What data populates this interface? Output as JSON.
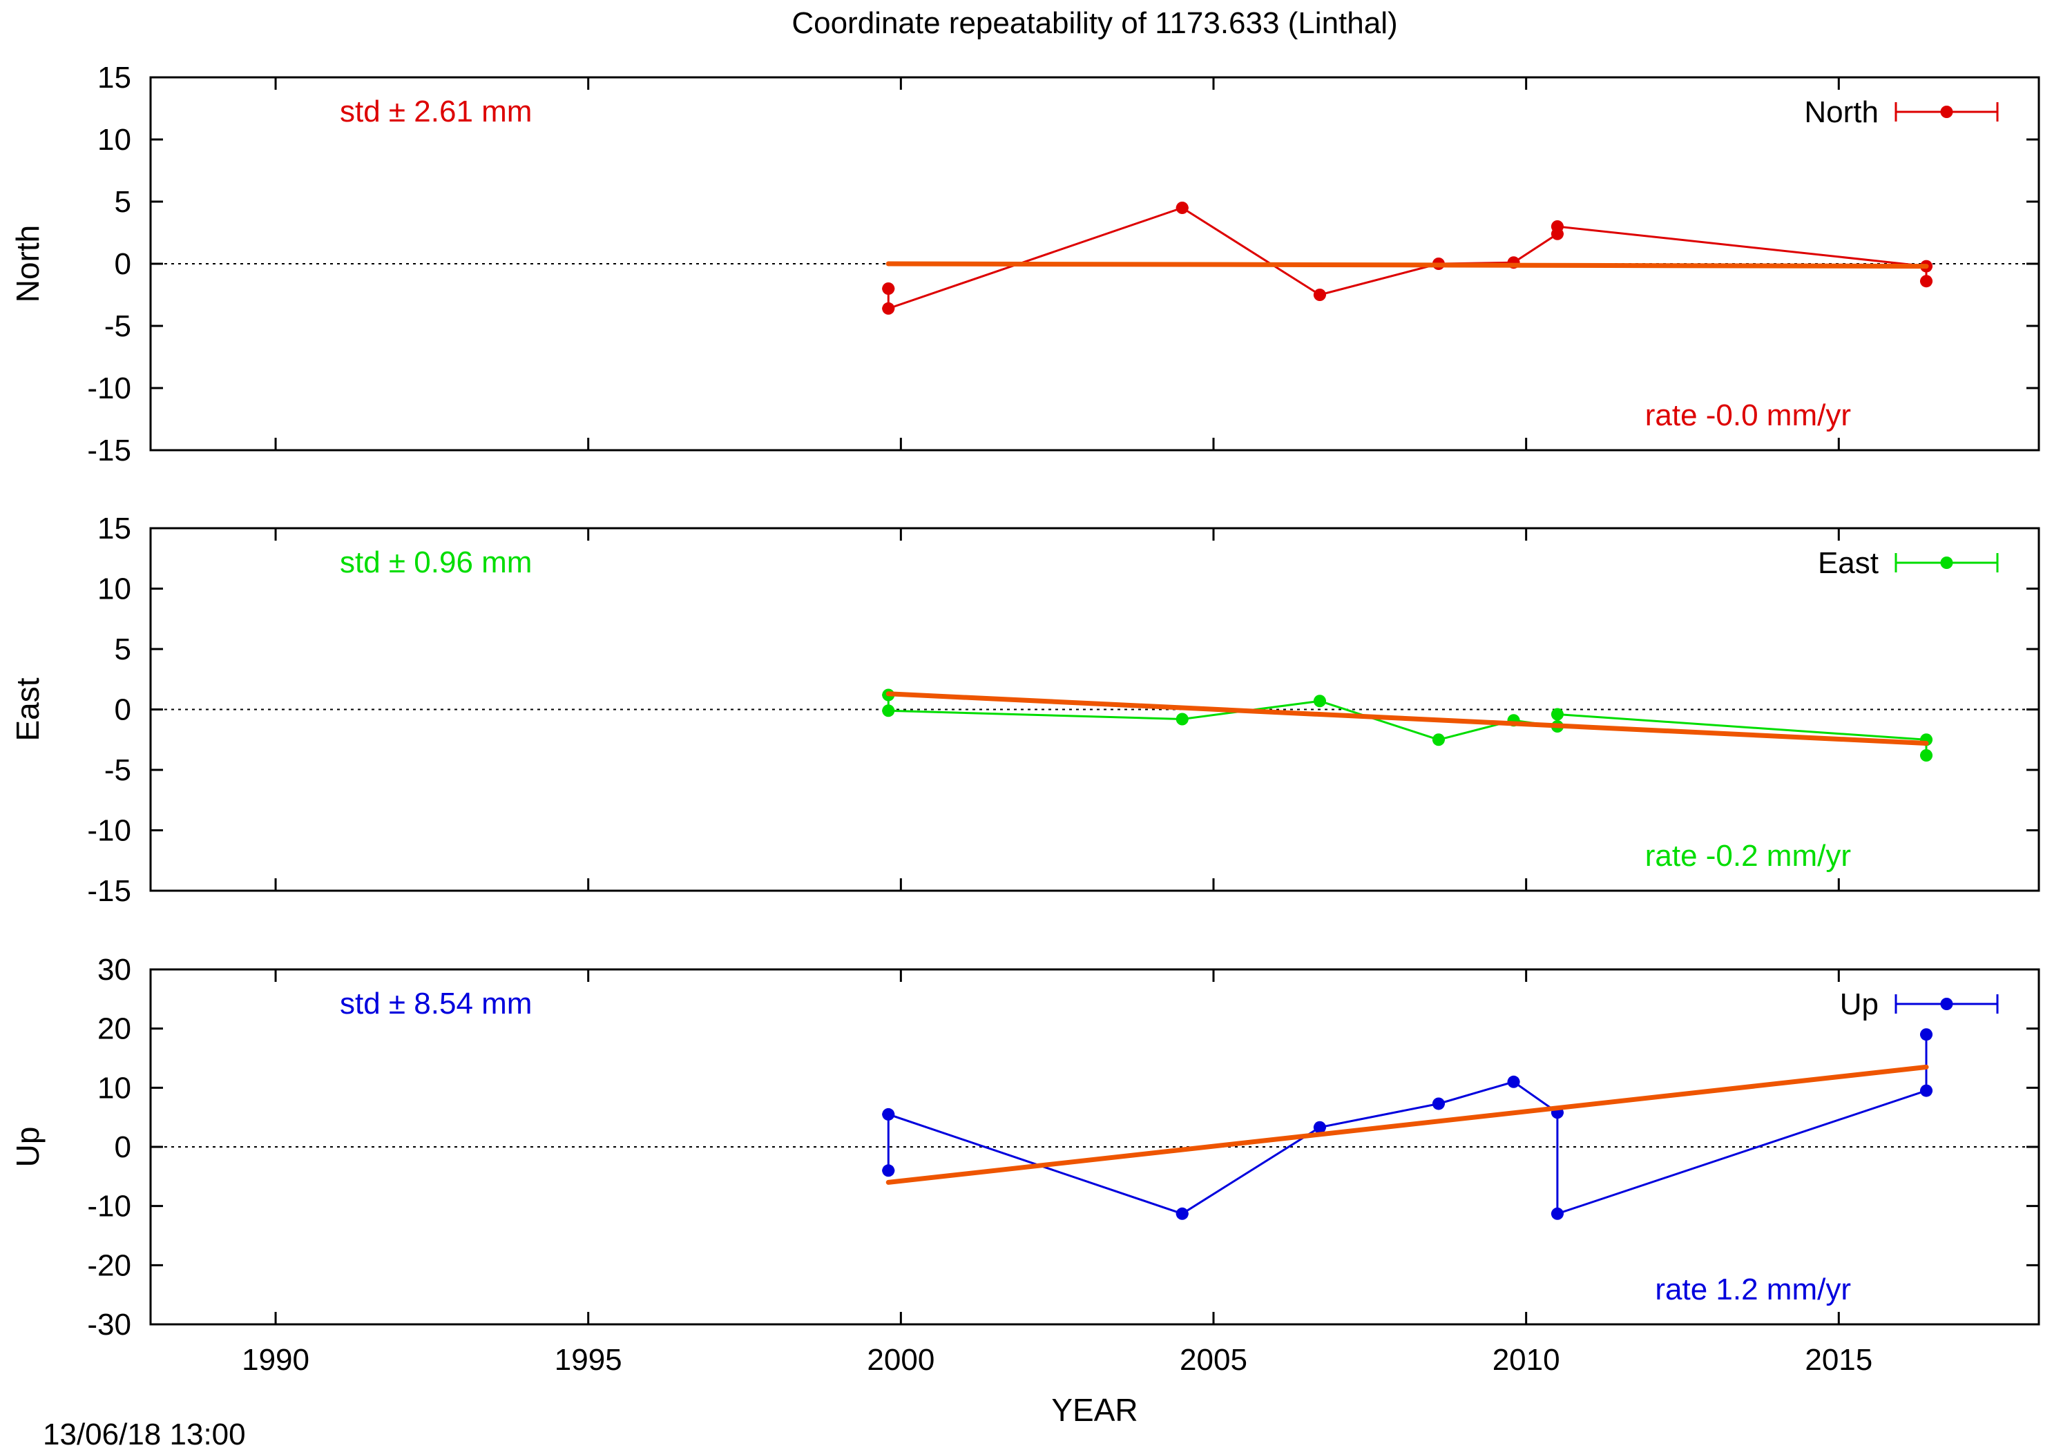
{
  "title": "Coordinate repeatability of 1173.633      (Linthal)",
  "xlabel": "YEAR",
  "timestamp": "13/06/18 13:00",
  "colors": {
    "north": "#dd0000",
    "east": "#00dd00",
    "up": "#0000dd",
    "trend": "#ee5500"
  },
  "chart_data": [
    {
      "type": "line",
      "ylabel": "North",
      "xlim": [
        1988,
        2018.2
      ],
      "ylim": [
        -15,
        15
      ],
      "yticks": [
        -15,
        -10,
        -5,
        0,
        5,
        10,
        15
      ],
      "series": [
        {
          "name": "North",
          "x": [
            1999.8,
            1999.8,
            2004.5,
            2006.7,
            2008.6,
            2009.8,
            2010.5,
            2010.5,
            2016.4,
            2016.4
          ],
          "y": [
            -2.0,
            -3.6,
            4.5,
            -2.5,
            0.0,
            0.1,
            2.4,
            3.0,
            -0.2,
            -1.4
          ]
        }
      ],
      "trend": {
        "x": [
          1999.8,
          2016.4
        ],
        "y": [
          0.0,
          -0.2
        ]
      },
      "std_text": "std ± 2.61 mm",
      "rate_text": "rate -0.0 mm/yr"
    },
    {
      "type": "line",
      "ylabel": "East",
      "xlim": [
        1988,
        2018.2
      ],
      "ylim": [
        -15,
        15
      ],
      "yticks": [
        -15,
        -10,
        -5,
        0,
        5,
        10,
        15
      ],
      "series": [
        {
          "name": "East",
          "x": [
            1999.8,
            1999.8,
            2004.5,
            2006.7,
            2008.6,
            2009.8,
            2010.5,
            2010.5,
            2016.4,
            2016.4
          ],
          "y": [
            1.2,
            -0.1,
            -0.8,
            0.7,
            -2.5,
            -0.9,
            -1.4,
            -0.4,
            -2.5,
            -3.8
          ]
        }
      ],
      "trend": {
        "x": [
          1999.8,
          2016.4
        ],
        "y": [
          1.3,
          -2.8
        ]
      },
      "std_text": "std ± 0.96 mm",
      "rate_text": "rate -0.2 mm/yr"
    },
    {
      "type": "line",
      "ylabel": "Up",
      "xlim": [
        1988,
        2018.2
      ],
      "ylim": [
        -30,
        30
      ],
      "yticks": [
        -30,
        -20,
        -10,
        0,
        10,
        20,
        30
      ],
      "xticks": [
        1990,
        1995,
        2000,
        2005,
        2010,
        2015
      ],
      "series": [
        {
          "name": "Up",
          "x": [
            1999.8,
            1999.8,
            2004.5,
            2006.7,
            2008.6,
            2009.8,
            2010.5,
            2010.5,
            2016.4,
            2016.4
          ],
          "y": [
            -4.0,
            5.5,
            -11.3,
            3.3,
            7.3,
            11.0,
            5.8,
            -11.3,
            9.5,
            19.0
          ]
        }
      ],
      "trend": {
        "x": [
          1999.8,
          2016.4
        ],
        "y": [
          -6.0,
          13.5
        ]
      },
      "std_text": "std ± 8.54 mm",
      "rate_text": "rate  1.2 mm/yr"
    }
  ]
}
